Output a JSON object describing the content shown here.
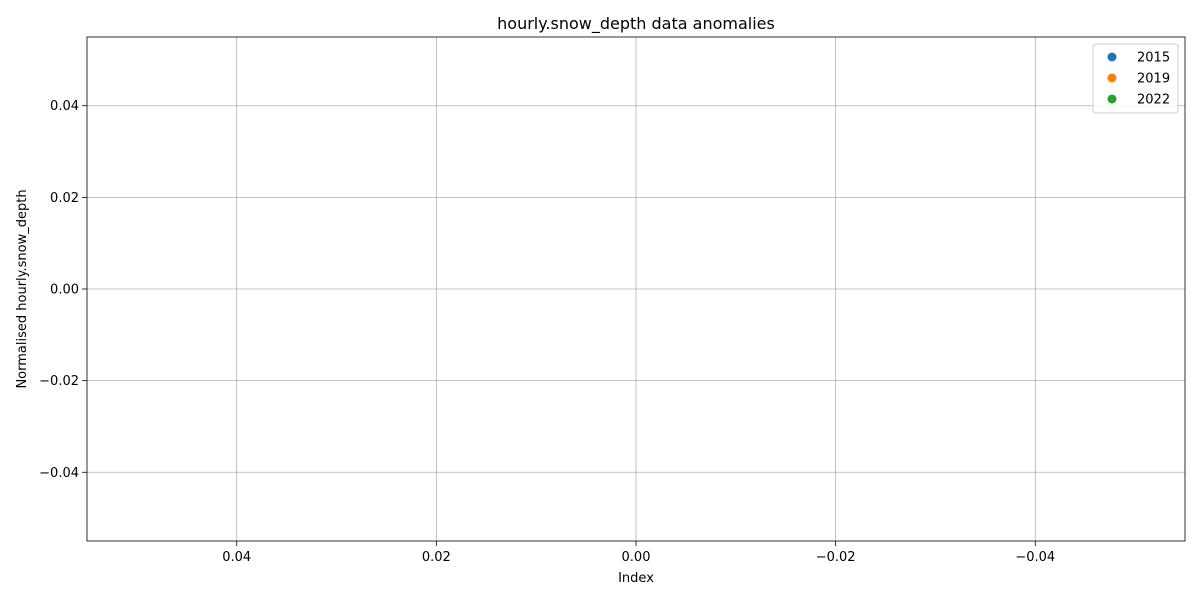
{
  "chart_data": {
    "type": "scatter",
    "title": "hourly.snow_depth data anomalies",
    "xlabel": "Index",
    "ylabel": "Normalised hourly.snow_depth",
    "x_inverted": true,
    "xlim": [
      0.055,
      -0.055
    ],
    "ylim": [
      -0.055,
      0.055
    ],
    "x_ticks": [
      0.04,
      0.02,
      0.0,
      -0.02,
      -0.04
    ],
    "x_tick_labels": [
      "0.04",
      "0.02",
      "0.00",
      "−0.02",
      "−0.04"
    ],
    "y_ticks": [
      0.04,
      0.02,
      0.0,
      -0.02,
      -0.04
    ],
    "y_tick_labels": [
      "0.04",
      "0.02",
      "0.00",
      "−0.02",
      "−0.04"
    ],
    "grid": true,
    "legend_position": "top-right",
    "series": [
      {
        "name": "2015",
        "color": "#1f77b4",
        "points": []
      },
      {
        "name": "2019",
        "color": "#ff7f0e",
        "points": []
      },
      {
        "name": "2022",
        "color": "#2ca02c",
        "points": []
      }
    ]
  }
}
